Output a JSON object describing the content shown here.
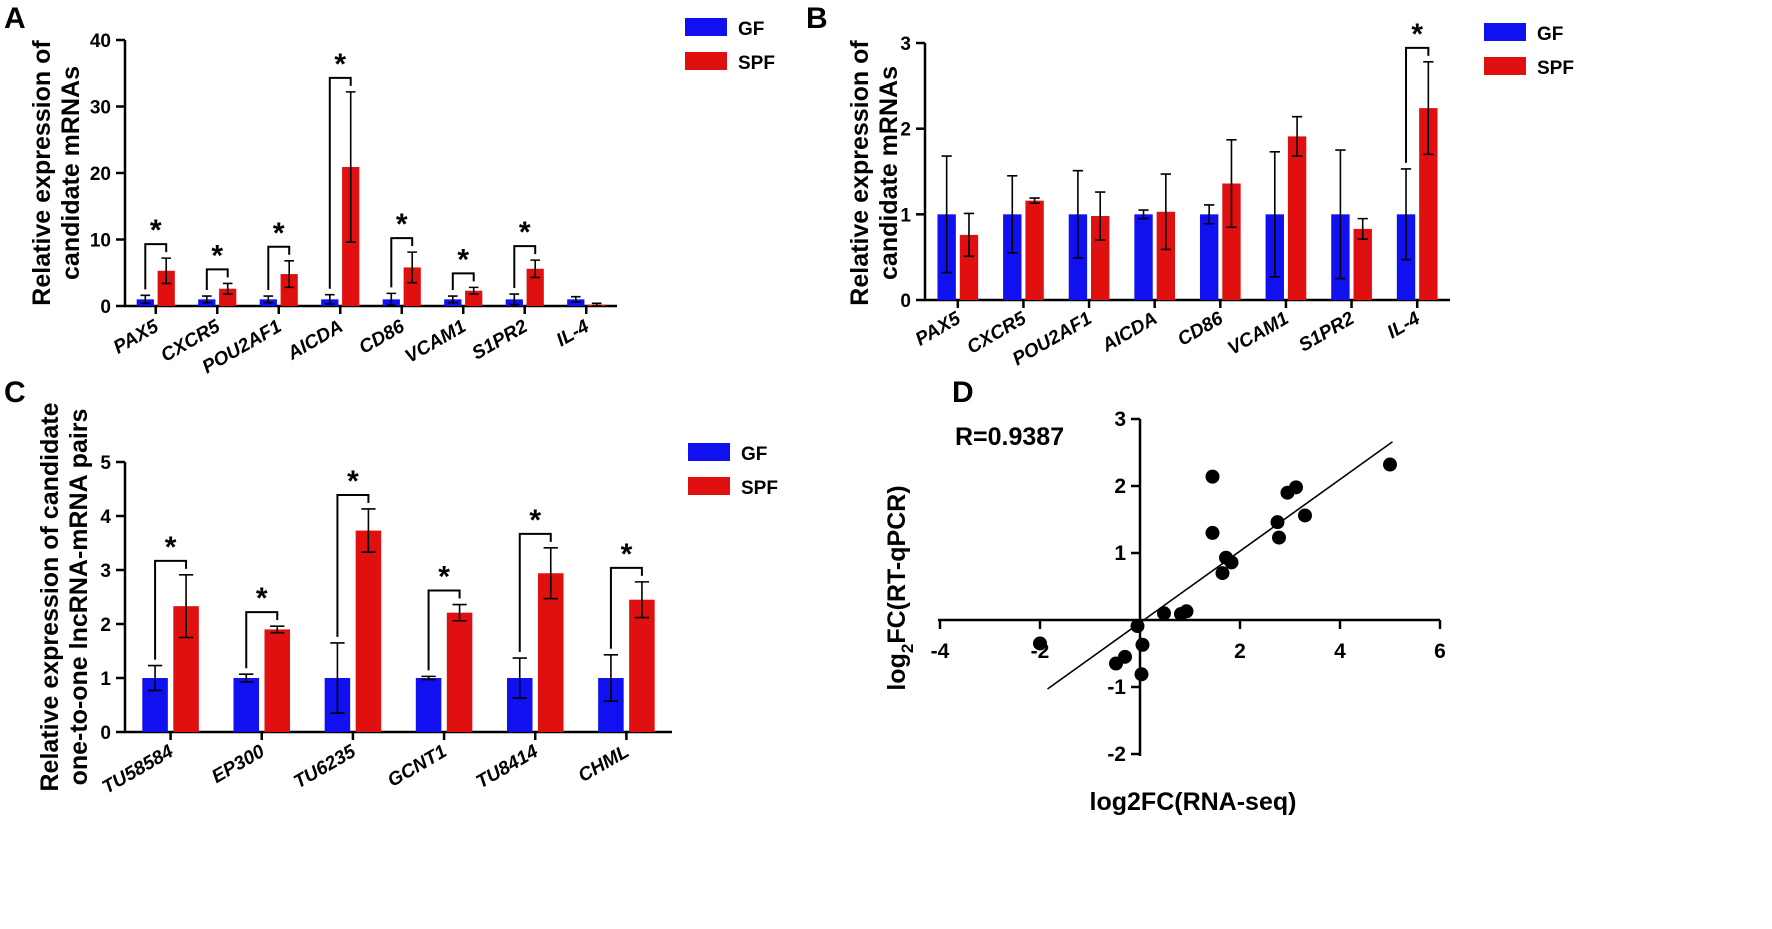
{
  "chart_data": [
    {
      "panel": "A",
      "type": "bar",
      "ylabel_lines": [
        "Relative expression of",
        "candidate mRNAs"
      ],
      "ylim": [
        0,
        40
      ],
      "yticks": [
        "0",
        "10",
        "20",
        "30",
        "40"
      ],
      "categories": [
        "PAX5",
        "CXCR5",
        "POU2AF1",
        "AICDA",
        "CD86",
        "VCAM1",
        "S1PR2",
        "IL-4"
      ],
      "series": [
        {
          "name": "GF",
          "color": "#1010f0",
          "values": [
            1,
            1,
            1,
            1,
            1,
            1,
            1,
            1
          ],
          "errors": [
            0.6,
            0.5,
            0.5,
            0.7,
            0.9,
            0.5,
            0.8,
            0.4
          ]
        },
        {
          "name": "SPF",
          "color": "#e01010",
          "values": [
            5.3,
            2.6,
            4.8,
            20.9,
            5.8,
            2.3,
            5.6,
            0.2
          ],
          "errors": [
            1.9,
            0.8,
            2.0,
            11.3,
            2.3,
            0.5,
            1.3,
            0.2
          ]
        }
      ],
      "significance": [
        0,
        1,
        2,
        3,
        4,
        5,
        6
      ],
      "sig_label": "*"
    },
    {
      "panel": "B",
      "type": "bar",
      "ylabel_lines": [
        "Relative expression of",
        "candidate mRNAs"
      ],
      "ylim": [
        0,
        3
      ],
      "yticks": [
        "0",
        "1",
        "2",
        "3"
      ],
      "categories": [
        "PAX5",
        "CXCR5",
        "POU2AF1",
        "AICDA",
        "CD86",
        "VCAM1",
        "S1PR2",
        "IL-4"
      ],
      "series": [
        {
          "name": "GF",
          "color": "#1010f0",
          "values": [
            1,
            1,
            1,
            1,
            1,
            1,
            1,
            1
          ],
          "errors": [
            0.68,
            0.45,
            0.51,
            0.05,
            0.11,
            0.73,
            0.75,
            0.53
          ]
        },
        {
          "name": "SPF",
          "color": "#e01010",
          "values": [
            0.76,
            1.16,
            0.98,
            1.03,
            1.36,
            1.91,
            0.83,
            2.24
          ],
          "errors": [
            0.25,
            0.03,
            0.28,
            0.44,
            0.51,
            0.23,
            0.12,
            0.54
          ]
        }
      ],
      "significance": [
        7
      ],
      "sig_label": "*"
    },
    {
      "panel": "C",
      "type": "bar",
      "ylabel_lines": [
        "Relative expression of candidate",
        "one-to-one lncRNA-mRNA pairs"
      ],
      "ylim": [
        0,
        5
      ],
      "yticks": [
        "0",
        "1",
        "2",
        "3",
        "4",
        "5"
      ],
      "categories": [
        "TU58584",
        "EP300",
        "TU6235",
        "GCNT1",
        "TU8414",
        "CHML"
      ],
      "series": [
        {
          "name": "GF",
          "color": "#1010f0",
          "values": [
            1,
            1,
            1,
            1,
            1,
            1
          ],
          "errors": [
            0.23,
            0.07,
            0.65,
            0.03,
            0.37,
            0.43
          ]
        },
        {
          "name": "SPF",
          "color": "#e01010",
          "values": [
            2.33,
            1.9,
            3.73,
            2.21,
            2.94,
            2.45
          ],
          "errors": [
            0.58,
            0.06,
            0.4,
            0.15,
            0.47,
            0.33
          ]
        }
      ],
      "significance": [
        0,
        1,
        2,
        3,
        4,
        5
      ],
      "sig_label": "*"
    },
    {
      "panel": "D",
      "type": "scatter",
      "annotation": "R=0.9387",
      "xlabel": "log2FC(RNA-seq)",
      "ylabel_parts": [
        "log",
        "2",
        "FC(RT-qPCR)"
      ],
      "xlim": [
        -4,
        6
      ],
      "ylim": [
        -2,
        3
      ],
      "xticks": [
        -4,
        -2,
        2,
        4,
        6
      ],
      "yticks": [
        -2,
        -1,
        1,
        2,
        3
      ],
      "xtick_labels": [
        "-4",
        "-2",
        "2",
        "4",
        "6"
      ],
      "ytick_labels": [
        "-2",
        "-1",
        "1",
        "2",
        "3"
      ],
      "points": [
        [
          5.0,
          2.32
        ],
        [
          3.12,
          1.98
        ],
        [
          2.95,
          1.9
        ],
        [
          3.3,
          1.56
        ],
        [
          2.75,
          1.46
        ],
        [
          2.78,
          1.23
        ],
        [
          1.45,
          2.14
        ],
        [
          1.45,
          1.3
        ],
        [
          1.72,
          0.93
        ],
        [
          1.83,
          0.86
        ],
        [
          1.65,
          0.7
        ],
        [
          0.93,
          0.13
        ],
        [
          0.82,
          0.09
        ],
        [
          0.48,
          0.1
        ],
        [
          -0.05,
          -0.09
        ],
        [
          0.05,
          -0.37
        ],
        [
          -0.3,
          -0.55
        ],
        [
          -0.48,
          -0.65
        ],
        [
          0.03,
          -0.81
        ],
        [
          -2.0,
          -0.35
        ]
      ],
      "fit_line": {
        "x": [
          -1.85,
          5.05
        ],
        "y": [
          -1.03,
          2.66
        ]
      }
    }
  ]
}
